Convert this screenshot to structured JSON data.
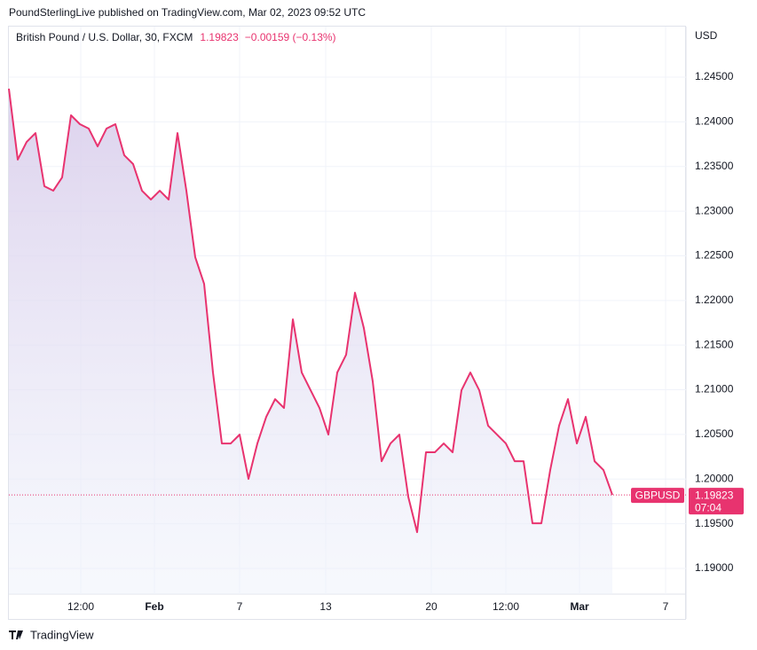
{
  "header": {
    "text": "PoundSterlingLive published on TradingView.com, Mar 02, 2023 09:52 UTC"
  },
  "chart_data": {
    "type": "line",
    "symbol_title": "British Pound / U.S. Dollar, 30, FXCM",
    "last_text": "1.19823",
    "change_text": "−0.00159 (−0.13%)",
    "currency": "USD",
    "countdown": "07:04",
    "last_price": {
      "value": 1.19823,
      "label": "1.19823"
    },
    "series": [
      {
        "name": "GBPUSD",
        "color": "#e8336f",
        "values": [
          1.24371,
          1.23577,
          1.23775,
          1.23874,
          1.23279,
          1.23229,
          1.23378,
          1.24073,
          1.23974,
          1.23924,
          1.23725,
          1.23924,
          1.23974,
          1.23626,
          1.23527,
          1.23229,
          1.2313,
          1.23229,
          1.2313,
          1.23874,
          1.23229,
          1.22484,
          1.22186,
          1.21193,
          1.20399,
          1.20399,
          1.20498,
          1.20002,
          1.20399,
          1.20697,
          1.20895,
          1.20796,
          1.21789,
          1.21193,
          1.20995,
          1.20796,
          1.20498,
          1.21193,
          1.21392,
          1.22087,
          1.2169,
          1.21094,
          1.202,
          1.20399,
          1.20498,
          1.19803,
          1.19406,
          1.203,
          1.203,
          1.20399,
          1.203,
          1.20995,
          1.21193,
          1.20995,
          1.20598,
          1.20498,
          1.20399,
          1.202,
          1.202,
          1.19505,
          1.19505,
          1.20101,
          1.20598,
          1.20895,
          1.20399,
          1.20697,
          1.202,
          1.20101,
          1.19823
        ]
      }
    ],
    "xlim": [
      0,
      76.3
    ],
    "xticks": [
      {
        "value": 8.1,
        "label": "12:00"
      },
      {
        "value": 16.4,
        "label": "Feb"
      },
      {
        "value": 26,
        "label": "7"
      },
      {
        "value": 35.7,
        "label": "13"
      },
      {
        "value": 47.6,
        "label": "20"
      },
      {
        "value": 56,
        "label": "12:00"
      },
      {
        "value": 64.3,
        "label": "Mar"
      },
      {
        "value": 74,
        "label": "7"
      }
    ],
    "ylim": [
      1.18712,
      1.25066
    ],
    "yticks": [
      {
        "value": 1.19,
        "label": "1.19000"
      },
      {
        "value": 1.195,
        "label": "1.19500"
      },
      {
        "value": 1.2,
        "label": "1.20000"
      },
      {
        "value": 1.205,
        "label": "1.20500"
      },
      {
        "value": 1.21,
        "label": "1.21000"
      },
      {
        "value": 1.215,
        "label": "1.21500"
      },
      {
        "value": 1.22,
        "label": "1.22000"
      },
      {
        "value": 1.225,
        "label": "1.22500"
      },
      {
        "value": 1.23,
        "label": "1.23000"
      },
      {
        "value": 1.235,
        "label": "1.23500"
      },
      {
        "value": 1.24,
        "label": "1.24000"
      },
      {
        "value": 1.245,
        "label": "1.24500"
      }
    ],
    "grid": true
  },
  "footer": {
    "brand": "TradingView"
  }
}
